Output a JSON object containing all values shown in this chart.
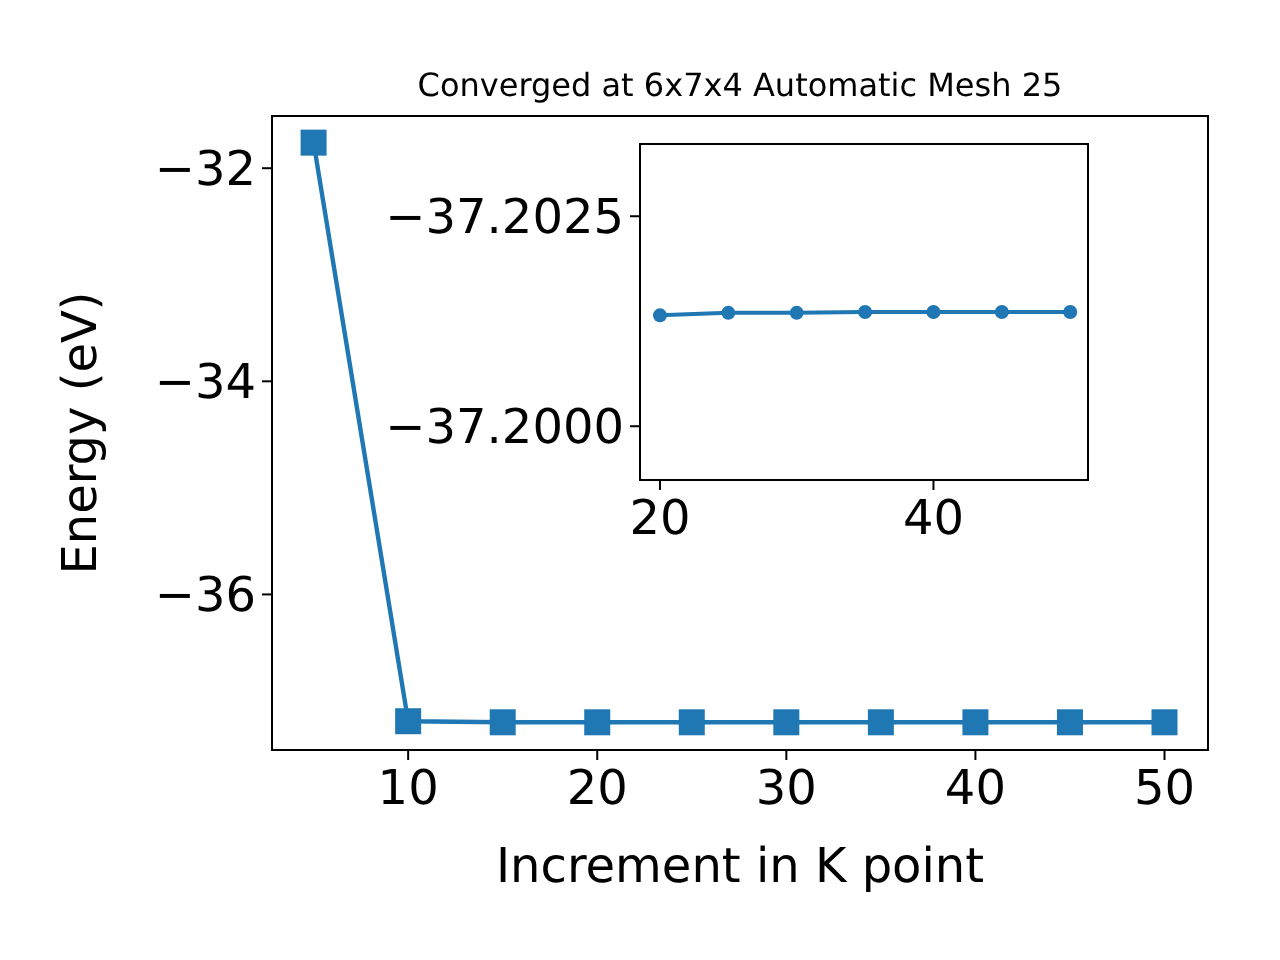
{
  "chart_data": [
    {
      "type": "line",
      "title": "Converged at 6x7x4 Automatic Mesh 25",
      "xlabel": "Increment in K point",
      "ylabel": "Energy (eV)",
      "x": [
        5,
        10,
        15,
        20,
        25,
        30,
        35,
        40,
        45,
        50
      ],
      "series": [
        {
          "color": "#1f77b4",
          "values": [
            -31.76,
            -37.19,
            -37.2,
            -37.2,
            -37.2,
            -37.2,
            -37.2,
            -37.2,
            -37.2,
            -37.2
          ]
        }
      ],
      "xlim": [
        2.8,
        52.3
      ],
      "ylim": [
        -37.46,
        -31.51
      ],
      "xticks": [
        10,
        20,
        30,
        40,
        50
      ],
      "yticks": [
        -36,
        -34,
        -32
      ],
      "marker": "square",
      "grid": false
    },
    {
      "type": "line",
      "x": [
        20,
        25,
        30,
        35,
        40,
        45,
        50
      ],
      "series": [
        {
          "color": "#1f77b4",
          "values": [
            -37.20132,
            -37.20135,
            -37.20135,
            -37.20136,
            -37.20136,
            -37.20136,
            -37.20136
          ]
        }
      ],
      "xlim": [
        18.54,
        51.3
      ],
      "ylim": [
        -37.19936,
        -37.20336
      ],
      "xticks": [
        20,
        40
      ],
      "yticks": [
        {
          "value": -37.2025,
          "label": "−37.2025"
        },
        {
          "value": -37.2,
          "label": "−37.2000"
        }
      ],
      "marker": "circle",
      "grid": false
    }
  ]
}
